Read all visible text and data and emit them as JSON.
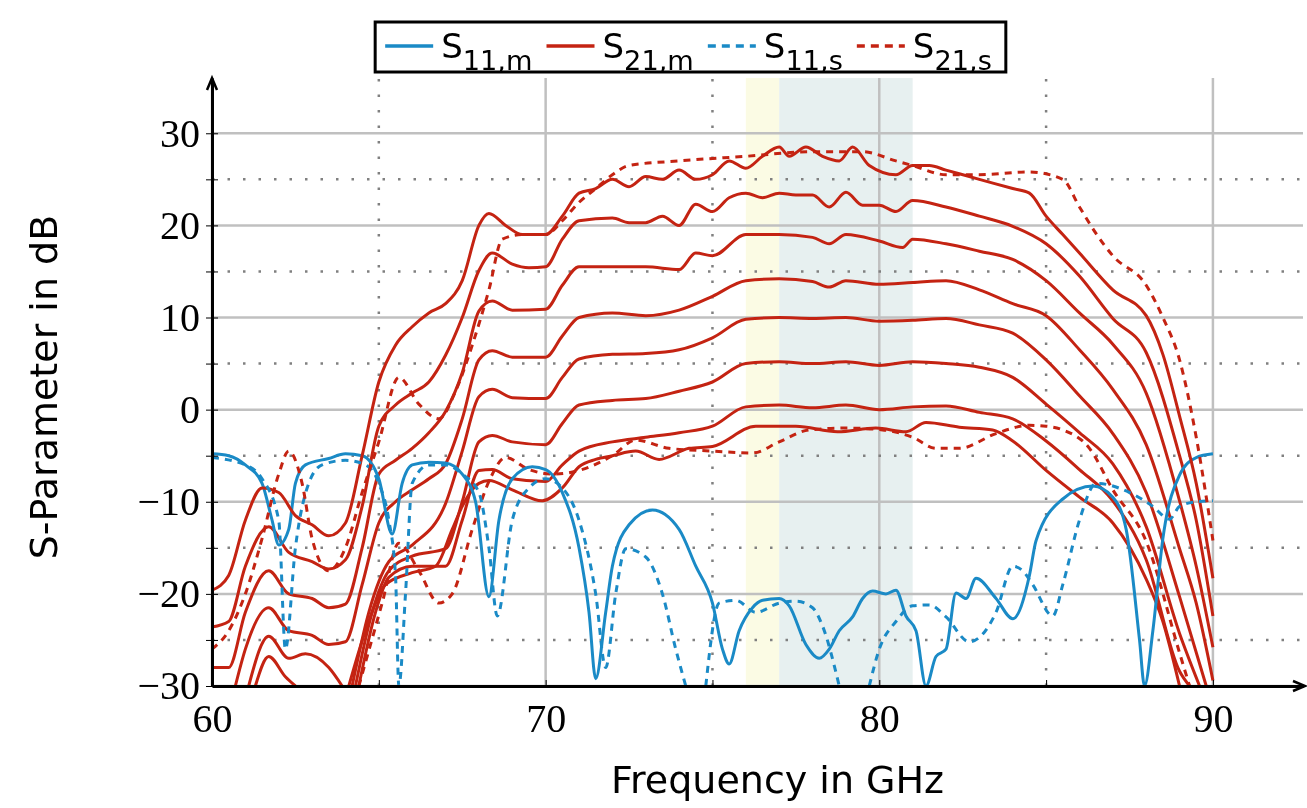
{
  "chart_data": {
    "type": "line",
    "xlabel": "Frequency in GHz",
    "ylabel": "S-Parameter in dB",
    "xlim": [
      60,
      92.7
    ],
    "ylim": [
      -30,
      36
    ],
    "xticks": [
      60,
      {
        "value": 65,
        "label": null
      },
      70,
      {
        "value": 75,
        "label": null
      },
      80,
      {
        "value": 85,
        "label": null
      },
      90
    ],
    "yticks": [
      {
        "value": -30,
        "label": "−30"
      },
      {
        "value": -25,
        "label": null
      },
      {
        "value": -20,
        "label": "−20"
      },
      {
        "value": -15,
        "label": null
      },
      {
        "value": -10,
        "label": "−10"
      },
      {
        "value": -5,
        "label": null
      },
      0,
      {
        "value": 5,
        "label": null
      },
      10,
      {
        "value": 15,
        "label": null
      },
      20,
      {
        "value": 25,
        "label": null
      },
      30
    ],
    "grid": true,
    "legend": "top",
    "bands": [
      {
        "axis": "x",
        "from": 76,
        "to": 77,
        "color": "#fbfbe4"
      },
      {
        "axis": "x",
        "from": 77,
        "to": 81,
        "color": "#e7f0f0"
      }
    ],
    "series": [
      {
        "name": "S$_{11,m}$",
        "color": "#1a8ac6",
        "line_style": "solid",
        "x": [
          60,
          60.5,
          61,
          61.5,
          61.8,
          62,
          62.3,
          62.5,
          62.8,
          63.5,
          64,
          64.5,
          65,
          65.4,
          65.7,
          66,
          66.5,
          67,
          67.5,
          67.9,
          68.3,
          68.6,
          69,
          69.6,
          70,
          70.5,
          71,
          71.3,
          71.5,
          71.8,
          72,
          72.5,
          73.2,
          74,
          74.5,
          75,
          75.3,
          75.5,
          75.8,
          76.2,
          76.5,
          77,
          77.3,
          77.8,
          78.2,
          78.5,
          78.8,
          79.2,
          79.5,
          79.8,
          80.2,
          80.5,
          80.8,
          81.1,
          81.4,
          81.7,
          82,
          82.3,
          82.6,
          82.9,
          83.5,
          84,
          84.5,
          84.7,
          85.5,
          86.4,
          87,
          87.4,
          87.8,
          87.95,
          88.2,
          88.5,
          89,
          89.5,
          90
        ],
        "values": [
          -4.8,
          -5,
          -6,
          -8,
          -12,
          -14.7,
          -13,
          -8,
          -6,
          -5.3,
          -4.8,
          -5,
          -7.5,
          -13.5,
          -8,
          -6,
          -5.7,
          -5.8,
          -7,
          -10,
          -20.3,
          -12,
          -7.5,
          -6.2,
          -6.5,
          -9,
          -15,
          -22,
          -29.2,
          -22,
          -17,
          -12.5,
          -10.9,
          -13,
          -17,
          -21,
          -26,
          -27.6,
          -24,
          -21.5,
          -20.7,
          -20.5,
          -21.3,
          -25.5,
          -27,
          -26,
          -24,
          -22.5,
          -20.5,
          -19.7,
          -20,
          -19.6,
          -22.4,
          -24,
          -30,
          -26.8,
          -26,
          -19.9,
          -20.5,
          -18.3,
          -20.5,
          -22.7,
          -18,
          -14.2,
          -9.7,
          -8.3,
          -9.5,
          -13,
          -25,
          -30,
          -24,
          -14,
          -7.1,
          -5.2,
          -4.8
        ]
      },
      {
        "name": "S$_{21,m}$",
        "color": "#c42312",
        "line_style": "solid",
        "x": [
          60,
          60.5,
          61,
          61.5,
          62,
          62.5,
          63,
          63.5,
          64,
          64.5,
          65,
          65.5,
          66,
          66.5,
          67,
          67.5,
          68,
          68.3,
          68.8,
          69.3,
          70,
          70.5,
          71,
          71.5,
          72,
          72.5,
          73,
          73.5,
          74,
          74.5,
          75,
          75.5,
          76,
          76.5,
          77,
          77.3,
          77.8,
          78.3,
          78.8,
          79.2,
          79.7,
          80.5,
          81,
          81.5,
          82,
          83,
          84,
          84.5,
          85,
          85.5,
          86,
          87,
          88,
          88.5,
          89,
          89.5,
          90
        ],
        "values": [
          -19.6,
          -18,
          -12,
          -8.5,
          -9,
          -11.5,
          -12.5,
          -13.7,
          -12.3,
          -5,
          3,
          7,
          9,
          10.5,
          11.5,
          14,
          20,
          21.3,
          20,
          19,
          19,
          21,
          23.5,
          24,
          25,
          24.2,
          25.3,
          25,
          26,
          25,
          25.5,
          27,
          26.2,
          27.5,
          28.5,
          27.5,
          28.5,
          27.5,
          27,
          28.5,
          26.5,
          25.5,
          26.5,
          26.5,
          26,
          25,
          24,
          23.5,
          21,
          19,
          17,
          13,
          10.2,
          6,
          -0.7,
          -8,
          -18.3
        ]
      },
      {
        "name": "S$_{11,s}$",
        "color": "#1a8ac6",
        "line_style": "dashed",
        "x": [
          60,
          61,
          61.5,
          62,
          62.2,
          62.5,
          62.9,
          63.3,
          64,
          64.6,
          65,
          65.3,
          65.5,
          65.6,
          65.8,
          66,
          66.5,
          67,
          67.5,
          68,
          68.3,
          68.55,
          69,
          69.5,
          70,
          70.5,
          71,
          71.5,
          71.8,
          72.1,
          72.4,
          73,
          73.5,
          73.9,
          74.2,
          74.45,
          74.8,
          75.2,
          75.7,
          76.3,
          77,
          77.5,
          78,
          78.3,
          78.8,
          79.2,
          79.7,
          80,
          80.5,
          81,
          81.5,
          82,
          82.7,
          83.5,
          84,
          84.3,
          84.6,
          85.2,
          85.5,
          86,
          86.5,
          87.5,
          88.2,
          88.7,
          89,
          89.5,
          90
        ],
        "values": [
          -5.2,
          -6,
          -7.5,
          -12,
          -26,
          -15,
          -8,
          -6,
          -5.5,
          -6,
          -8,
          -12,
          -18,
          -30,
          -20,
          -8,
          -6,
          -6,
          -7,
          -9,
          -15,
          -22.4,
          -12,
          -8.5,
          -7.5,
          -8.5,
          -12,
          -20,
          -28,
          -20,
          -15.1,
          -16,
          -20,
          -26,
          -30,
          null,
          -30,
          -21,
          -20.7,
          -22,
          -21,
          -20.8,
          -21.5,
          -23.5,
          -30,
          null,
          -30,
          -26,
          -23,
          -21.3,
          -21.2,
          -22.5,
          -25.2,
          -22,
          -17,
          -17.5,
          -19,
          -22.4,
          -19,
          -12,
          -8,
          -9,
          -10.5,
          -11.9,
          -10.5,
          -10,
          -9.9
        ]
      },
      {
        "name": "S$_{21,s}$",
        "color": "#c42312",
        "line_style": "dashed",
        "x": [
          60,
          60.5,
          61,
          61.5,
          62,
          62.3,
          62.7,
          63,
          63.5,
          64,
          64.5,
          65,
          65.6,
          66.2,
          66.8,
          67.3,
          67.8,
          68.3,
          68.7,
          69.3,
          70,
          70.5,
          71,
          71.5,
          72,
          72.5,
          74,
          76,
          78,
          79.5,
          80.5,
          81,
          82,
          83,
          84.5,
          85.5,
          86,
          86.5,
          87,
          88,
          88.5,
          89,
          89.5,
          90
        ],
        "values": [
          -26,
          -24,
          -20,
          -14,
          -7,
          -4.5,
          -8,
          -14,
          -17.5,
          -15,
          -9,
          -3.5,
          3.5,
          0.6,
          -1,
          2,
          7,
          13,
          18.5,
          19,
          19,
          20.5,
          22.5,
          24,
          25.5,
          26.5,
          27,
          27.5,
          28,
          28,
          27,
          26.5,
          25.5,
          25.5,
          25.8,
          25,
          22,
          19.1,
          16.7,
          13.5,
          10,
          5.4,
          -3,
          -14.2
        ]
      },
      {
        "color": "#c42312",
        "line_style": "solid",
        "x": [
          60,
          60.5,
          61,
          61.7,
          62.3,
          63,
          63.5,
          64,
          64.5,
          65,
          65.5,
          66,
          66.5,
          67,
          67.5,
          68,
          68.4,
          69,
          69.5,
          70,
          70.5,
          71,
          72,
          72.5,
          73,
          73.5,
          74,
          74.5,
          75,
          75.5,
          76,
          76.5,
          77,
          77.5,
          78,
          78.5,
          79,
          79.5,
          80,
          80.5,
          81,
          82,
          83,
          84,
          85,
          86,
          87,
          88,
          89,
          89.5,
          90
        ],
        "values": [
          -23.6,
          -23,
          -17,
          -12.7,
          -15.5,
          -16.5,
          -17.3,
          -16.3,
          -10.5,
          -1.8,
          0.5,
          1.8,
          3,
          5.9,
          10,
          15.1,
          17,
          15.8,
          15.4,
          15.5,
          18.5,
          20.5,
          20.8,
          20.3,
          20.3,
          21,
          20,
          22.3,
          21.5,
          23,
          23.5,
          23,
          23.5,
          23.3,
          23.3,
          22,
          23.6,
          22.2,
          22.2,
          21.5,
          22.7,
          22,
          21,
          19.9,
          18,
          14.5,
          9.9,
          6.2,
          -5,
          -12,
          -22.4
        ]
      },
      {
        "color": "#c42312",
        "line_style": "solid",
        "x": [
          60,
          60.5,
          61,
          61.7,
          62.3,
          63,
          63.5,
          64,
          64.5,
          65,
          65.5,
          66,
          66.5,
          67,
          67.5,
          68,
          68.4,
          69,
          70,
          70.5,
          71,
          72,
          73,
          74,
          74.5,
          75,
          76,
          77,
          78,
          78.5,
          79,
          80,
          80.7,
          81,
          82,
          83,
          84,
          85,
          86,
          87,
          88,
          89,
          89.5,
          90
        ],
        "values": [
          -28,
          -28,
          -22,
          -17.5,
          -20,
          -20.5,
          -21.5,
          -21.1,
          -15,
          -7,
          -5.5,
          -4.2,
          -2.5,
          -0.2,
          4,
          10.7,
          11.8,
          10.8,
          10.9,
          13.5,
          15.5,
          15.5,
          15.5,
          15.2,
          17,
          16.7,
          19,
          19,
          18.7,
          18,
          19,
          18.3,
          17.6,
          18.5,
          18,
          17.2,
          16.3,
          14,
          10.5,
          7.1,
          1.8,
          -9.9,
          -17,
          -25.8
        ]
      },
      {
        "color": "#c42312",
        "line_style": "solid",
        "x": [
          60.7,
          61,
          61.7,
          62.3,
          63,
          63.5,
          64,
          64.5,
          65,
          65.5,
          66,
          66.5,
          67,
          67.5,
          68,
          68.4,
          69,
          70,
          70.5,
          71,
          72,
          73,
          74,
          75,
          76,
          77,
          78,
          78.5,
          79,
          80,
          81,
          82,
          83,
          84,
          85,
          86,
          87,
          88,
          89,
          89.5,
          90
        ],
        "values": [
          -30,
          -26,
          -21.5,
          -24,
          -24.5,
          -25.5,
          -25.2,
          -19,
          -12.3,
          -10,
          -8.7,
          -7.5,
          -5.9,
          -1,
          5.4,
          6.4,
          5.7,
          5.7,
          8,
          10,
          10.5,
          10.2,
          10.8,
          12.3,
          14,
          14.2,
          13.9,
          13.3,
          14,
          13.6,
          13.8,
          14,
          13,
          11.5,
          10.2,
          6.5,
          2.2,
          -3.8,
          -15.1,
          -21,
          -29.4
        ]
      },
      {
        "color": "#c42312",
        "line_style": "solid",
        "x": [
          61.1,
          61.7,
          62.3,
          62.8,
          63.5,
          63.9,
          64.05,
          64.2,
          64.7,
          65.3,
          66,
          67,
          67.5,
          68,
          68.4,
          69,
          70,
          70.5,
          71,
          72,
          73,
          74,
          75,
          76,
          77,
          78,
          79,
          80,
          81,
          82,
          83,
          84,
          85,
          86,
          87,
          88,
          89,
          89.8
        ],
        "values": [
          -30,
          -24.6,
          -27,
          -26.5,
          -28,
          -30,
          null,
          -30,
          -22,
          -16.5,
          -14.7,
          -10.2,
          -4.5,
          1.4,
          2.2,
          1.3,
          1.2,
          3.5,
          5.5,
          6,
          6.1,
          6.5,
          7.8,
          9.8,
          10,
          9.9,
          10,
          9.6,
          9.7,
          9.9,
          9.2,
          8.3,
          5.4,
          1.5,
          -2.6,
          -9,
          -20.3,
          -30
        ]
      },
      {
        "color": "#c42312",
        "line_style": "solid",
        "x": [
          61.3,
          61.7,
          62.2,
          62.5,
          63.4,
          64.3,
          64.8,
          65.3,
          66,
          67,
          67.5,
          68,
          68.4,
          69,
          70,
          70.5,
          71,
          72,
          73,
          74,
          75,
          76,
          77,
          78,
          79,
          80,
          81,
          82,
          83,
          84,
          85,
          86,
          87,
          88,
          89,
          89.6
        ],
        "values": [
          -30,
          -26.8,
          -29,
          -30,
          null,
          -30,
          -22,
          -17.5,
          -15.9,
          -15.1,
          -10,
          -3.5,
          -2.8,
          -3.5,
          -3.8,
          -1.5,
          0.5,
          1,
          1.2,
          2,
          3,
          5,
          5.2,
          5,
          5.2,
          4.8,
          5.2,
          5,
          4.6,
          3.5,
          0.6,
          -2.5,
          -5.9,
          -12.7,
          -24.3,
          -30
        ]
      },
      {
        "color": "#c42312",
        "line_style": "solid",
        "x": [
          64.4,
          64.9,
          65.3,
          66,
          67,
          67.5,
          68,
          68.4,
          69,
          70,
          70.5,
          71,
          72,
          73,
          74,
          75,
          76,
          77,
          78,
          79,
          80,
          81,
          82,
          83,
          84,
          85,
          86,
          87,
          88,
          89,
          89.3
        ],
        "values": [
          -30,
          -22,
          -18.2,
          -17,
          -17,
          -12,
          -6.6,
          -6.5,
          -7.5,
          -7.8,
          -6,
          -4.5,
          -3.5,
          -3,
          -2.5,
          -1.8,
          0.3,
          0.5,
          0.2,
          0.5,
          0,
          0.3,
          0.4,
          -0.3,
          -1,
          -3.4,
          -6.5,
          -9.9,
          -16.3,
          -28.4,
          -30
        ]
      },
      {
        "color": "#c42312",
        "line_style": "solid",
        "x": [
          64.1,
          64.6,
          65.2,
          66,
          66.7,
          67.2,
          67.5,
          68,
          68.3,
          69,
          69.9,
          70.5,
          71,
          71.5,
          72,
          72.7,
          73.4,
          74.3,
          75,
          76.3,
          77.5,
          78.75,
          79.9,
          80.8,
          81.4,
          82.4,
          83.4,
          84,
          85,
          86,
          87,
          88,
          88.5,
          89
        ],
        "values": [
          -30,
          -24,
          -19,
          -17.7,
          -17,
          -13,
          -10.5,
          -8,
          -7.7,
          -8.7,
          -9.9,
          -8.5,
          -6.2,
          -5.4,
          -5,
          -4.5,
          -5.4,
          -4.2,
          -4,
          -1.8,
          -1.8,
          -2.4,
          -2,
          -2.4,
          -1.4,
          -1.9,
          -2.2,
          -3.4,
          -6.6,
          -9.5,
          -12.3,
          -18.4,
          -23,
          -30
        ]
      },
      {
        "color": "#c42312",
        "line_style": "dashed",
        "x": [
          64.4,
          65.1,
          65.6,
          66.2,
          66.8,
          67.2,
          67.8,
          68.3,
          68.8,
          69.5,
          70.2,
          71,
          72,
          72.7,
          73.7,
          75,
          76.2,
          77,
          77.9,
          79,
          80.1,
          81,
          81.7,
          82.4,
          83.5,
          84.5,
          85,
          85.5,
          86.3,
          87,
          88,
          89,
          89.3
        ],
        "values": [
          -30,
          -21,
          -14.5,
          -17.5,
          -21,
          -20,
          -13,
          -7.8,
          -5.2,
          -6.5,
          -7,
          -6.6,
          -5,
          -3.3,
          -4.2,
          -4.5,
          -4.7,
          -3.5,
          -2.2,
          -2,
          -2.2,
          -3,
          -4.2,
          -4.2,
          -2.6,
          -1.7,
          -1.8,
          -2.2,
          -4.2,
          -8.7,
          -14.3,
          -26.4,
          -30
        ]
      }
    ]
  }
}
